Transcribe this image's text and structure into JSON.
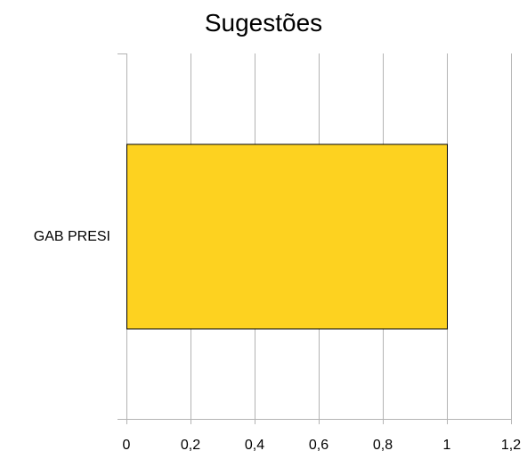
{
  "chart_data": {
    "type": "bar",
    "orientation": "horizontal",
    "title": "Sugestões",
    "xlabel": "",
    "ylabel": "",
    "categories": [
      "GAB PRESI"
    ],
    "values": [
      1
    ],
    "xlim": [
      0,
      1.2
    ],
    "x_ticks": [
      0,
      0.2,
      0.4,
      0.6,
      0.8,
      1,
      1.2
    ],
    "x_tick_labels": [
      "0",
      "0,2",
      "0,4",
      "0,6",
      "0,8",
      "1",
      "1,2"
    ],
    "grid": true,
    "legend": "none",
    "colors": {
      "bar_fill": "#FDD220",
      "bar_stroke": "#000000",
      "grid": "#B3B3B3",
      "axis": "#B3B3B3",
      "text": "#000000"
    }
  }
}
